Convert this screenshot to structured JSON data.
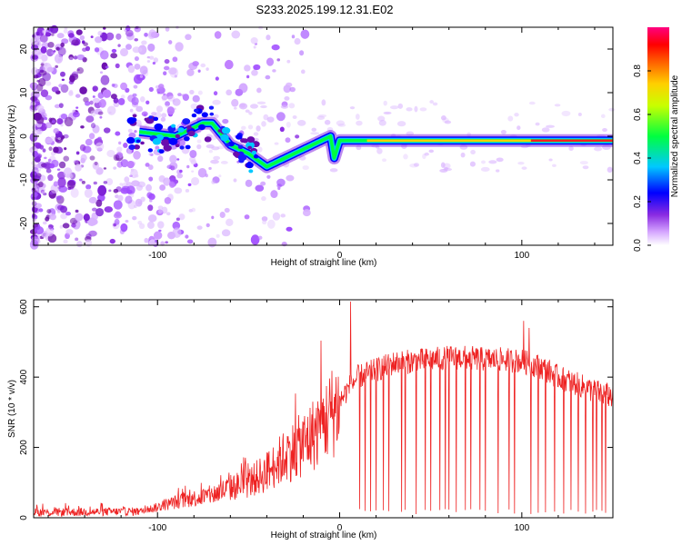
{
  "title": "S233.2025.199.12.31.E02",
  "chart_data": [
    {
      "type": "heatmap",
      "xlabel": "Height of straight line (km)",
      "ylabel": "Frequency (Hz)",
      "xlim": [
        -168,
        150
      ],
      "ylim": [
        -25,
        25
      ],
      "xticks": [
        -100,
        0,
        100
      ],
      "yticks": [
        -20,
        -10,
        0,
        10,
        20
      ],
      "colorbar": {
        "label": "Normalized spectral amplitude",
        "range": [
          0,
          1
        ],
        "ticks": [
          "0.0",
          "0.2",
          "0.4",
          "0.6",
          "0.8"
        ],
        "colors": [
          "#ffffff",
          "#9b30ff",
          "#0000ff",
          "#00e5ff",
          "#00ff00",
          "#ffff00",
          "#ff8000",
          "#ff0000",
          "#ff0080"
        ]
      },
      "ridge": {
        "x": [
          -110,
          -90,
          -75,
          -70,
          -60,
          -50,
          -40,
          -30,
          -20,
          -10,
          -5,
          -3,
          0,
          20,
          50,
          100,
          150
        ],
        "y": [
          1,
          0,
          3,
          3,
          -2,
          -4,
          -7,
          -5,
          -3,
          -1,
          0,
          -5,
          -1,
          -1,
          -1,
          -1,
          -1
        ]
      }
    },
    {
      "type": "line",
      "xlabel": "Height of straight line (km)",
      "ylabel": "SNR (10 * v/v)",
      "xlim": [
        -168,
        150
      ],
      "ylim": [
        0,
        620
      ],
      "xticks": [
        -100,
        0,
        100
      ],
      "yticks": [
        0,
        200,
        400,
        600
      ],
      "line_color": "#ee2222",
      "envelope": {
        "x": [
          -168,
          -110,
          -100,
          -90,
          -80,
          -70,
          -60,
          -50,
          -40,
          -30,
          -20,
          -10,
          0,
          5,
          10,
          15,
          20,
          25,
          30,
          40,
          50,
          60,
          70,
          80,
          90,
          100,
          110,
          120,
          130,
          140,
          150
        ],
        "y": [
          15,
          18,
          30,
          45,
          55,
          65,
          85,
          100,
          130,
          175,
          210,
          260,
          330,
          370,
          400,
          410,
          420,
          430,
          440,
          445,
          450,
          455,
          455,
          450,
          450,
          445,
          430,
          400,
          380,
          360,
          345
        ]
      },
      "spikes": [
        {
          "x": 6,
          "y": 615
        },
        {
          "x": 84,
          "y": 470
        },
        {
          "x": 101,
          "y": 560
        },
        {
          "x": 104,
          "y": 540
        }
      ],
      "dropouts": [
        6,
        11,
        14,
        17,
        20,
        24,
        27,
        34,
        36,
        42,
        47,
        50,
        55,
        58,
        60,
        64,
        69,
        72,
        77,
        80,
        84,
        87,
        93,
        96,
        105,
        109,
        113,
        118,
        123,
        127,
        131,
        135,
        139,
        141,
        144,
        146
      ]
    }
  ]
}
